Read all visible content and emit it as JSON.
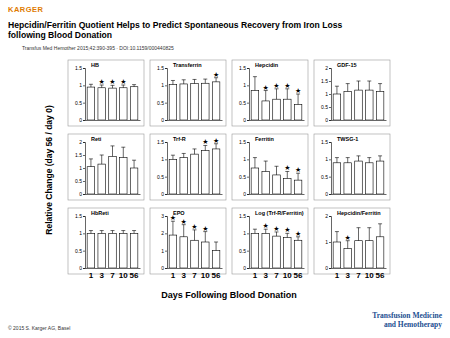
{
  "header": {
    "publisher": "KARGER",
    "title_lines": [
      "Hepcidin/Ferritin Quotient Helps to Predict Spontaneous Recovery from Iron Loss",
      "following Blood Donation"
    ],
    "citation": "Transfus Med Hemother 2015;42:390-395 · DOI:10.1159/000440825"
  },
  "figure": {
    "x_label": "Days Following Blood Donation",
    "y_label": "Relative Change (day 56 / day 0)"
  },
  "footer": {
    "copyright": "© 2015 S. Karger AG, Basel",
    "journal_lines": [
      "Transfusion Medicine",
      "and Hemotherapy"
    ]
  },
  "chart_data": [
    {
      "type": "bar",
      "title": "HB",
      "categories": [
        1,
        3,
        7,
        10,
        56
      ],
      "values": [
        0.95,
        0.93,
        0.92,
        0.93,
        0.96
      ],
      "errors": [
        0.08,
        0.08,
        0.08,
        0.08,
        0.06
      ],
      "significance": [
        null,
        "★",
        "★",
        "★",
        null
      ],
      "ylim": [
        0,
        1.5
      ],
      "yticks": [
        0,
        0.5,
        1,
        1.5
      ],
      "tick_labels": "y"
    },
    {
      "type": "bar",
      "title": "Transferrin",
      "categories": [
        1,
        3,
        7,
        10,
        56
      ],
      "values": [
        1.02,
        1.04,
        1.05,
        1.06,
        1.1
      ],
      "errors": [
        0.12,
        0.12,
        0.12,
        0.12,
        0.12
      ],
      "significance": [
        null,
        null,
        null,
        null,
        "★"
      ],
      "ylim": [
        0,
        1.5
      ],
      "yticks": [
        0,
        0.5,
        1,
        1.5
      ],
      "tick_labels": "y"
    },
    {
      "type": "bar",
      "title": "Hepcidin",
      "categories": [
        1,
        3,
        7,
        10,
        56
      ],
      "values": [
        0.85,
        0.55,
        0.6,
        0.6,
        0.45
      ],
      "errors": [
        0.4,
        0.3,
        0.3,
        0.3,
        0.3
      ],
      "significance": [
        null,
        "★",
        "★",
        "★",
        "★"
      ],
      "ylim": [
        0,
        1.5
      ],
      "yticks": [
        0,
        0.5,
        1,
        1.5
      ],
      "tick_labels": "y"
    },
    {
      "type": "bar",
      "title": "GDF-15",
      "categories": [
        1,
        3,
        7,
        10,
        56
      ],
      "values": [
        1.0,
        1.1,
        1.15,
        1.15,
        1.1
      ],
      "errors": [
        0.3,
        0.3,
        0.35,
        0.35,
        0.3
      ],
      "significance": [
        null,
        null,
        null,
        null,
        null
      ],
      "ylim": [
        0,
        2
      ],
      "yticks": [
        0,
        0.5,
        1,
        1.5,
        2
      ],
      "tick_labels": "y"
    },
    {
      "type": "bar",
      "title": "Reti",
      "categories": [
        1,
        3,
        7,
        10,
        56
      ],
      "values": [
        1.05,
        1.15,
        1.45,
        1.4,
        1.0
      ],
      "errors": [
        0.3,
        0.35,
        0.4,
        0.4,
        0.3
      ],
      "significance": [
        null,
        null,
        null,
        null,
        null
      ],
      "ylim": [
        0,
        2
      ],
      "yticks": [
        0,
        0.5,
        1,
        1.5,
        2
      ],
      "tick_labels": "y"
    },
    {
      "type": "bar",
      "title": "Trf-R",
      "categories": [
        1,
        3,
        7,
        10,
        56
      ],
      "values": [
        1.0,
        1.05,
        1.15,
        1.25,
        1.3
      ],
      "errors": [
        0.12,
        0.12,
        0.15,
        0.15,
        0.15
      ],
      "significance": [
        null,
        null,
        null,
        "★",
        "★"
      ],
      "ylim": [
        0,
        1.5
      ],
      "yticks": [
        0,
        0.5,
        1,
        1.5
      ],
      "tick_labels": "y"
    },
    {
      "type": "bar",
      "title": "Ferritin",
      "categories": [
        1,
        3,
        7,
        10,
        56
      ],
      "values": [
        0.75,
        0.65,
        0.55,
        0.45,
        0.4
      ],
      "errors": [
        0.3,
        0.3,
        0.25,
        0.2,
        0.2
      ],
      "significance": [
        null,
        null,
        null,
        "★",
        "★"
      ],
      "ylim": [
        0,
        1.5
      ],
      "yticks": [
        0,
        0.5,
        1,
        1.5
      ],
      "tick_labels": "y"
    },
    {
      "type": "bar",
      "title": "TWSG-1",
      "categories": [
        1,
        3,
        7,
        10,
        56
      ],
      "values": [
        0.9,
        0.9,
        0.95,
        0.9,
        0.95
      ],
      "errors": [
        0.15,
        0.15,
        0.15,
        0.15,
        0.15
      ],
      "significance": [
        null,
        null,
        null,
        null,
        null
      ],
      "ylim": [
        0,
        1.5
      ],
      "yticks": [
        0,
        0.5,
        1,
        1.5
      ],
      "tick_labels": "y"
    },
    {
      "type": "bar",
      "title": "HbReti",
      "categories": [
        1,
        3,
        7,
        10,
        56
      ],
      "values": [
        1.0,
        1.0,
        1.0,
        1.0,
        1.0
      ],
      "errors": [
        0.08,
        0.08,
        0.08,
        0.08,
        0.08
      ],
      "significance": [
        null,
        null,
        null,
        null,
        null
      ],
      "ylim": [
        0,
        1.5
      ],
      "yticks": [
        0,
        0.5,
        1,
        1.5
      ]
    },
    {
      "type": "bar",
      "title": "EPO",
      "categories": [
        1,
        3,
        7,
        10,
        56
      ],
      "values": [
        1.9,
        1.8,
        1.6,
        1.5,
        1.0
      ],
      "errors": [
        0.8,
        0.7,
        0.6,
        0.6,
        0.5
      ],
      "significance": [
        "★",
        "★",
        "★",
        "★",
        null
      ],
      "ylim": [
        0,
        3
      ],
      "yticks": [
        0,
        1,
        2,
        3
      ]
    },
    {
      "type": "bar",
      "title": "Log (Trf-R/Ferritin)",
      "categories": [
        1,
        3,
        7,
        10,
        56
      ],
      "values": [
        1.0,
        1.0,
        0.92,
        0.88,
        0.8
      ],
      "errors": [
        0.12,
        0.12,
        0.12,
        0.12,
        0.1
      ],
      "significance": [
        null,
        "★",
        "★",
        "★",
        "★"
      ],
      "ylim": [
        0,
        1.5
      ],
      "yticks": [
        0,
        0.5,
        1,
        1.5
      ]
    },
    {
      "type": "bar",
      "title": "Hepcidin/Ferritin",
      "categories": [
        1,
        3,
        7,
        10,
        56
      ],
      "values": [
        1.0,
        0.75,
        1.05,
        1.05,
        1.2
      ],
      "errors": [
        0.4,
        0.3,
        0.5,
        0.5,
        0.5
      ],
      "significance": [
        null,
        "★",
        null,
        null,
        null
      ],
      "ylim": [
        0,
        2
      ],
      "yticks": [
        0,
        1,
        2
      ]
    }
  ]
}
